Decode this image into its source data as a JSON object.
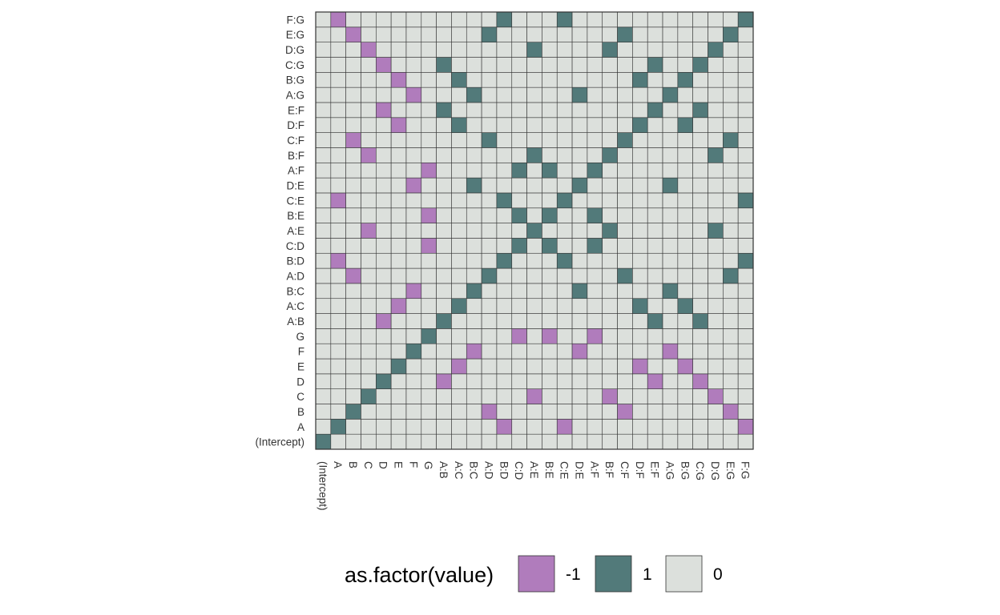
{
  "chart_data": {
    "type": "heatmap",
    "columns": [
      "(Intercept)",
      "A",
      "B",
      "C",
      "D",
      "E",
      "F",
      "G",
      "A:B",
      "A:C",
      "B:C",
      "A:D",
      "B:D",
      "C:D",
      "A:E",
      "B:E",
      "C:E",
      "D:E",
      "A:F",
      "B:F",
      "C:F",
      "D:F",
      "E:F",
      "A:G",
      "B:G",
      "C:G",
      "D:G",
      "E:G",
      "F:G"
    ],
    "rows": [
      "(Intercept)",
      "A",
      "B",
      "C",
      "D",
      "E",
      "F",
      "G",
      "A:B",
      "A:C",
      "B:C",
      "A:D",
      "B:D",
      "C:D",
      "A:E",
      "B:E",
      "C:E",
      "D:E",
      "A:F",
      "B:F",
      "C:F",
      "D:F",
      "E:F",
      "A:G",
      "B:G",
      "C:G",
      "D:G",
      "E:G",
      "F:G"
    ],
    "values": [
      [
        1,
        0,
        0,
        0,
        0,
        0,
        0,
        0,
        0,
        0,
        0,
        0,
        0,
        0,
        0,
        0,
        0,
        0,
        0,
        0,
        0,
        0,
        0,
        0,
        0,
        0,
        0,
        0,
        0
      ],
      [
        0,
        1,
        0,
        0,
        0,
        0,
        0,
        0,
        0,
        0,
        0,
        0,
        -1,
        0,
        0,
        0,
        -1,
        0,
        0,
        0,
        0,
        0,
        0,
        0,
        0,
        0,
        0,
        0,
        -1
      ],
      [
        0,
        0,
        1,
        0,
        0,
        0,
        0,
        0,
        0,
        0,
        0,
        -1,
        0,
        0,
        0,
        0,
        0,
        0,
        0,
        0,
        -1,
        0,
        0,
        0,
        0,
        0,
        0,
        -1,
        0
      ],
      [
        0,
        0,
        0,
        1,
        0,
        0,
        0,
        0,
        0,
        0,
        0,
        0,
        0,
        0,
        -1,
        0,
        0,
        0,
        0,
        -1,
        0,
        0,
        0,
        0,
        0,
        0,
        -1,
        0,
        0
      ],
      [
        0,
        0,
        0,
        0,
        1,
        0,
        0,
        0,
        -1,
        0,
        0,
        0,
        0,
        0,
        0,
        0,
        0,
        0,
        0,
        0,
        0,
        0,
        -1,
        0,
        0,
        -1,
        0,
        0,
        0
      ],
      [
        0,
        0,
        0,
        0,
        0,
        1,
        0,
        0,
        0,
        -1,
        0,
        0,
        0,
        0,
        0,
        0,
        0,
        0,
        0,
        0,
        0,
        -1,
        0,
        0,
        -1,
        0,
        0,
        0,
        0
      ],
      [
        0,
        0,
        0,
        0,
        0,
        0,
        1,
        0,
        0,
        0,
        -1,
        0,
        0,
        0,
        0,
        0,
        0,
        -1,
        0,
        0,
        0,
        0,
        0,
        -1,
        0,
        0,
        0,
        0,
        0
      ],
      [
        0,
        0,
        0,
        0,
        0,
        0,
        0,
        1,
        0,
        0,
        0,
        0,
        0,
        -1,
        0,
        -1,
        0,
        0,
        -1,
        0,
        0,
        0,
        0,
        0,
        0,
        0,
        0,
        0,
        0
      ],
      [
        0,
        0,
        0,
        0,
        -1,
        0,
        0,
        0,
        1,
        0,
        0,
        0,
        0,
        0,
        0,
        0,
        0,
        0,
        0,
        0,
        0,
        0,
        1,
        0,
        0,
        1,
        0,
        0,
        0
      ],
      [
        0,
        0,
        0,
        0,
        0,
        -1,
        0,
        0,
        0,
        1,
        0,
        0,
        0,
        0,
        0,
        0,
        0,
        0,
        0,
        0,
        0,
        1,
        0,
        0,
        1,
        0,
        0,
        0,
        0
      ],
      [
        0,
        0,
        0,
        0,
        0,
        0,
        -1,
        0,
        0,
        0,
        1,
        0,
        0,
        0,
        0,
        0,
        0,
        1,
        0,
        0,
        0,
        0,
        0,
        1,
        0,
        0,
        0,
        0,
        0
      ],
      [
        0,
        0,
        -1,
        0,
        0,
        0,
        0,
        0,
        0,
        0,
        0,
        1,
        0,
        0,
        0,
        0,
        0,
        0,
        0,
        0,
        1,
        0,
        0,
        0,
        0,
        0,
        0,
        1,
        0
      ],
      [
        0,
        -1,
        0,
        0,
        0,
        0,
        0,
        0,
        0,
        0,
        0,
        0,
        1,
        0,
        0,
        0,
        1,
        0,
        0,
        0,
        0,
        0,
        0,
        0,
        0,
        0,
        0,
        0,
        1
      ],
      [
        0,
        0,
        0,
        0,
        0,
        0,
        0,
        -1,
        0,
        0,
        0,
        0,
        0,
        1,
        0,
        1,
        0,
        0,
        1,
        0,
        0,
        0,
        0,
        0,
        0,
        0,
        0,
        0,
        0
      ],
      [
        0,
        0,
        0,
        -1,
        0,
        0,
        0,
        0,
        0,
        0,
        0,
        0,
        0,
        0,
        1,
        0,
        0,
        0,
        0,
        1,
        0,
        0,
        0,
        0,
        0,
        0,
        1,
        0,
        0
      ],
      [
        0,
        0,
        0,
        0,
        0,
        0,
        0,
        -1,
        0,
        0,
        0,
        0,
        0,
        1,
        0,
        1,
        0,
        0,
        1,
        0,
        0,
        0,
        0,
        0,
        0,
        0,
        0,
        0,
        0
      ],
      [
        0,
        -1,
        0,
        0,
        0,
        0,
        0,
        0,
        0,
        0,
        0,
        0,
        1,
        0,
        0,
        0,
        1,
        0,
        0,
        0,
        0,
        0,
        0,
        0,
        0,
        0,
        0,
        0,
        1
      ],
      [
        0,
        0,
        0,
        0,
        0,
        0,
        -1,
        0,
        0,
        0,
        1,
        0,
        0,
        0,
        0,
        0,
        0,
        1,
        0,
        0,
        0,
        0,
        0,
        1,
        0,
        0,
        0,
        0,
        0
      ],
      [
        0,
        0,
        0,
        0,
        0,
        0,
        0,
        -1,
        0,
        0,
        0,
        0,
        0,
        1,
        0,
        1,
        0,
        0,
        1,
        0,
        0,
        0,
        0,
        0,
        0,
        0,
        0,
        0,
        0
      ],
      [
        0,
        0,
        0,
        -1,
        0,
        0,
        0,
        0,
        0,
        0,
        0,
        0,
        0,
        0,
        1,
        0,
        0,
        0,
        0,
        1,
        0,
        0,
        0,
        0,
        0,
        0,
        1,
        0,
        0
      ],
      [
        0,
        0,
        -1,
        0,
        0,
        0,
        0,
        0,
        0,
        0,
        0,
        1,
        0,
        0,
        0,
        0,
        0,
        0,
        0,
        0,
        1,
        0,
        0,
        0,
        0,
        0,
        0,
        1,
        0
      ],
      [
        0,
        0,
        0,
        0,
        0,
        -1,
        0,
        0,
        0,
        1,
        0,
        0,
        0,
        0,
        0,
        0,
        0,
        0,
        0,
        0,
        0,
        1,
        0,
        0,
        1,
        0,
        0,
        0,
        0
      ],
      [
        0,
        0,
        0,
        0,
        -1,
        0,
        0,
        0,
        1,
        0,
        0,
        0,
        0,
        0,
        0,
        0,
        0,
        0,
        0,
        0,
        0,
        0,
        1,
        0,
        0,
        1,
        0,
        0,
        0
      ],
      [
        0,
        0,
        0,
        0,
        0,
        0,
        -1,
        0,
        0,
        0,
        1,
        0,
        0,
        0,
        0,
        0,
        0,
        1,
        0,
        0,
        0,
        0,
        0,
        1,
        0,
        0,
        0,
        0,
        0
      ],
      [
        0,
        0,
        0,
        0,
        0,
        -1,
        0,
        0,
        0,
        1,
        0,
        0,
        0,
        0,
        0,
        0,
        0,
        0,
        0,
        0,
        0,
        1,
        0,
        0,
        1,
        0,
        0,
        0,
        0
      ],
      [
        0,
        0,
        0,
        0,
        -1,
        0,
        0,
        0,
        1,
        0,
        0,
        0,
        0,
        0,
        0,
        0,
        0,
        0,
        0,
        0,
        0,
        0,
        1,
        0,
        0,
        1,
        0,
        0,
        0
      ],
      [
        0,
        0,
        0,
        -1,
        0,
        0,
        0,
        0,
        0,
        0,
        0,
        0,
        0,
        0,
        1,
        0,
        0,
        0,
        0,
        1,
        0,
        0,
        0,
        0,
        0,
        0,
        1,
        0,
        0
      ],
      [
        0,
        0,
        -1,
        0,
        0,
        0,
        0,
        0,
        0,
        0,
        0,
        1,
        0,
        0,
        0,
        0,
        0,
        0,
        0,
        0,
        1,
        0,
        0,
        0,
        0,
        0,
        0,
        1,
        0
      ],
      [
        0,
        -1,
        0,
        0,
        0,
        0,
        0,
        0,
        0,
        0,
        0,
        0,
        1,
        0,
        0,
        0,
        1,
        0,
        0,
        0,
        0,
        0,
        0,
        0,
        0,
        0,
        0,
        0,
        1
      ]
    ],
    "legend": {
      "title": "as.factor(value)",
      "entries": [
        {
          "label": "-1",
          "value": -1
        },
        {
          "label": "1",
          "value": 1
        },
        {
          "label": "0",
          "value": 0
        }
      ],
      "placement": "bottom"
    },
    "colors": {
      "-1": "#B07CBC",
      "1": "#527A7A",
      "0": "#DCE0DC"
    },
    "xlabel": "",
    "ylabel": "",
    "grid": false
  }
}
